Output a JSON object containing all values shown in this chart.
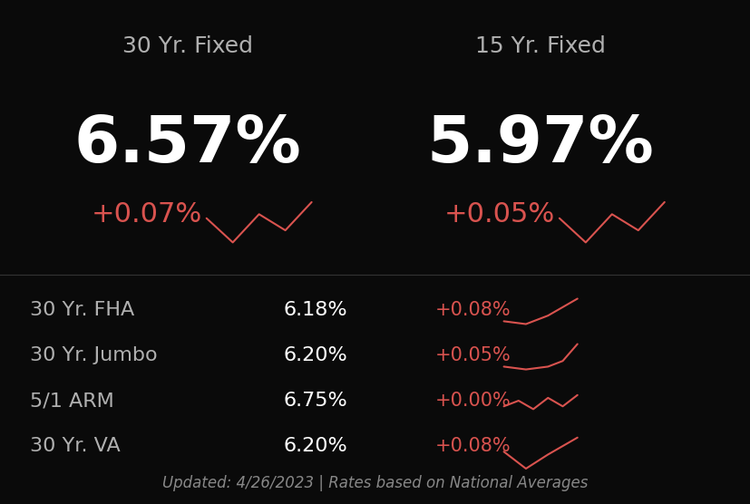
{
  "background_color": "#0a0a0a",
  "title_color": "#b0b0b0",
  "white_color": "#ffffff",
  "red_color": "#d9534f",
  "gray_color": "#888888",
  "header_30": "30 Yr. Fixed",
  "header_15": "15 Yr. Fixed",
  "rate_30": "6.57%",
  "rate_15": "5.97%",
  "change_30": "+0.07%",
  "change_15": "+0.05%",
  "rows": [
    {
      "label": "30 Yr. FHA",
      "rate": "6.18%",
      "change": "+0.08%"
    },
    {
      "label": "30 Yr. Jumbo",
      "rate": "6.20%",
      "change": "+0.05%"
    },
    {
      "label": "5/1 ARM",
      "rate": "6.75%",
      "change": "+0.00%"
    },
    {
      "label": "30 Yr. VA",
      "rate": "6.20%",
      "change": "+0.08%"
    }
  ],
  "footer": "Updated: 4/26/2023 | Rates based on National Averages",
  "header_fontsize": 18,
  "big_rate_fontsize": 52,
  "change_fontsize": 22,
  "row_label_fontsize": 16,
  "row_rate_fontsize": 16,
  "row_change_fontsize": 15,
  "footer_fontsize": 12
}
